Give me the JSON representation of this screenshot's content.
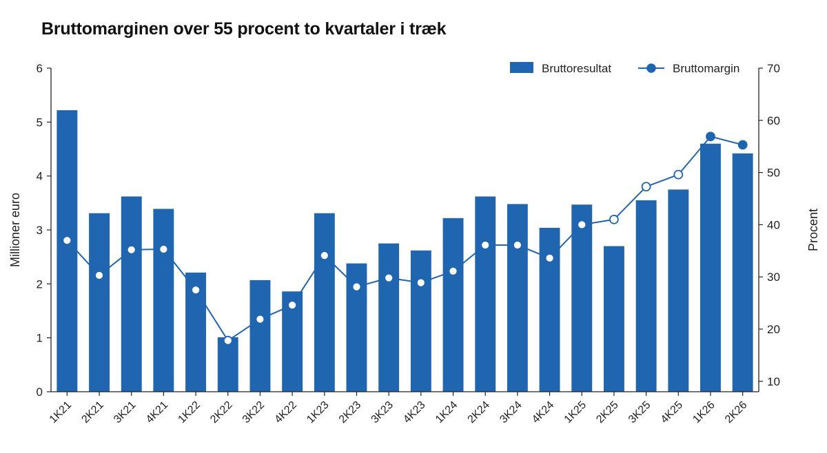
{
  "chart_data": {
    "type": "bar",
    "title": "Bruttomarginen over 55 procent to kvartaler i træk",
    "categories": [
      "1K21",
      "2K21",
      "3K21",
      "4K21",
      "1K22",
      "2K22",
      "3K22",
      "4K22",
      "1K23",
      "2K23",
      "3K23",
      "4K23",
      "1K24",
      "2K24",
      "3K24",
      "4K24",
      "1K25",
      "2K25",
      "3K25",
      "4K25",
      "1K26",
      "2K26"
    ],
    "series": [
      {
        "name": "Bruttoresultat",
        "type": "bar",
        "axis": "left",
        "values": [
          5.22,
          3.31,
          3.62,
          3.39,
          2.21,
          1.01,
          2.07,
          1.86,
          3.31,
          2.38,
          2.75,
          2.62,
          3.22,
          3.62,
          3.48,
          3.04,
          3.47,
          2.7,
          3.55,
          3.75,
          4.6,
          4.42
        ]
      },
      {
        "name": "Bruttomargin",
        "type": "line",
        "axis": "right",
        "values": [
          37.0,
          30.3,
          35.2,
          35.3,
          27.5,
          17.8,
          21.9,
          24.6,
          34.1,
          28.1,
          29.8,
          28.9,
          31.1,
          36.1,
          36.1,
          33.6,
          40.0,
          41.0,
          47.3,
          49.6,
          56.9,
          55.3
        ]
      }
    ],
    "ylabel": "Millioner euro",
    "ylim": [
      0,
      6
    ],
    "yticks": [
      0,
      1,
      2,
      3,
      4,
      5,
      6
    ],
    "y2label": "Procent",
    "y2lim": [
      8,
      70
    ],
    "y2ticks": [
      10,
      20,
      30,
      40,
      50,
      60,
      70
    ],
    "grid": false,
    "legend_position": "top-right",
    "colors": {
      "bar": "#1f65b0",
      "line": "#1f65b0",
      "axis": "#222222",
      "marker_fill": "#ffffff"
    }
  }
}
